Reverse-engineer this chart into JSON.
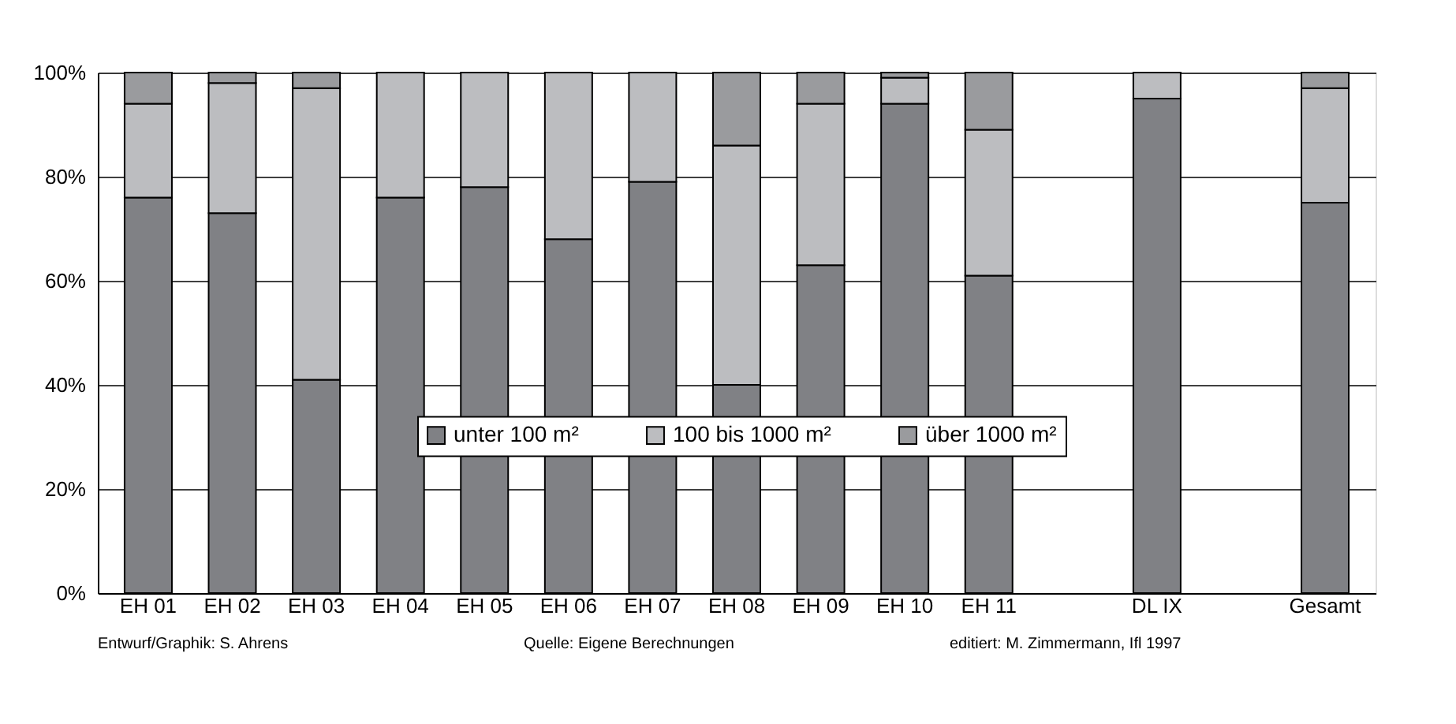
{
  "chart_data": {
    "type": "bar",
    "stacked": true,
    "categories": [
      "EH 01",
      "EH 02",
      "EH 03",
      "EH 04",
      "EH 05",
      "EH 06",
      "EH 07",
      "EH 08",
      "EH 09",
      "EH 10",
      "EH 11",
      null,
      "DL IX",
      null,
      "Gesamt"
    ],
    "series": [
      {
        "name": "unter 100 m²",
        "color": "#808185",
        "values": [
          76,
          73,
          41,
          76,
          78,
          68,
          79,
          40,
          63,
          94,
          61,
          null,
          95,
          null,
          75
        ]
      },
      {
        "name": "100 bis 1000 m²",
        "color": "#bcbdc0",
        "values": [
          18,
          25,
          56,
          24,
          22,
          32,
          21,
          46,
          31,
          5,
          28,
          null,
          5,
          null,
          22
        ]
      },
      {
        "name": "über 1000 m²",
        "color": "#9a9b9e",
        "values": [
          6,
          2,
          3,
          0,
          0,
          0,
          0,
          14,
          6,
          1,
          11,
          null,
          0,
          null,
          3
        ]
      }
    ],
    "ylim": [
      0,
      100
    ],
    "yticks": [
      {
        "value": 0,
        "label": "0%"
      },
      {
        "value": 20,
        "label": "20%"
      },
      {
        "value": 40,
        "label": "40%"
      },
      {
        "value": 60,
        "label": "60%"
      },
      {
        "value": 80,
        "label": "80%"
      },
      {
        "value": 100,
        "label": "100%"
      }
    ],
    "grid": "y",
    "legend": "bottom",
    "annotations": [
      "Entwurf/Graphik: S. Ahrens",
      "Quelle: Eigene Berechnungen",
      "editiert: M. Zimmermann, Ifl 1997"
    ]
  }
}
